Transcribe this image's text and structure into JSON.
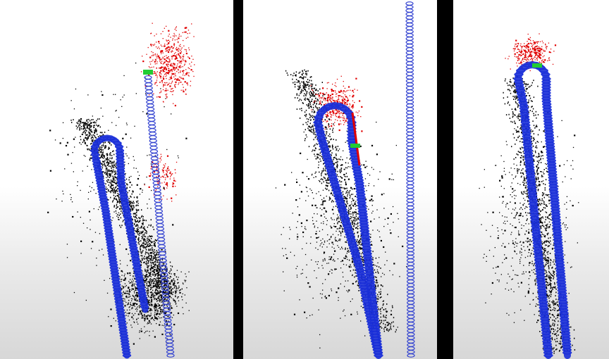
{
  "figure": {
    "panel_count": 3,
    "panels": [
      {
        "label": "",
        "view": "left"
      },
      {
        "label": "",
        "view": "middle"
      },
      {
        "label": "",
        "view": "right"
      }
    ],
    "colors": {
      "background": "#ffffff",
      "map_points_dense": "#000000",
      "map_points_current": "#e00000",
      "trajectory_keyframes": "#1a2fd8",
      "trajectory_ground_truth": "#3040d0",
      "current_pose": "#22cc33",
      "separator": "#000000"
    }
  }
}
